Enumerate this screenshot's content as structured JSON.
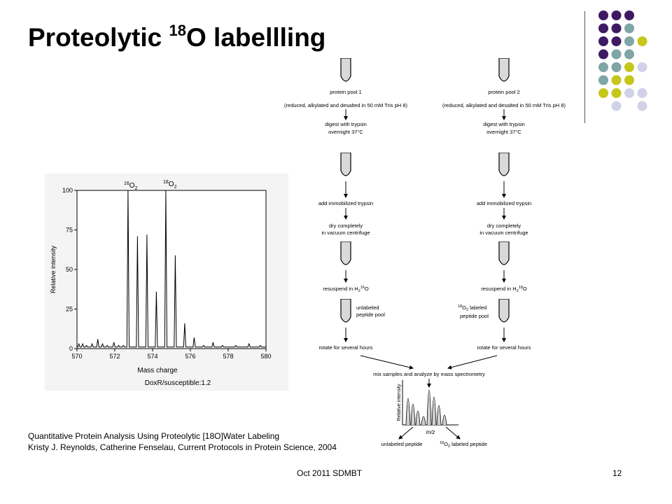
{
  "slide": {
    "title_prefix": "Proteolytic ",
    "title_sup": "18",
    "title_suffix": "O labellling",
    "footer": "Oct 2011 SDMBT",
    "slide_number": "12",
    "citation_line1": "Quantitative Protein Analysis Using Proteolytic [18O]Water Labeling",
    "citation_line2": "Kristy J. Reynolds, Catherine Fenselau, Current Protocols in Protein Science, 2004"
  },
  "theme": {
    "colors": {
      "purple": "#3e1a63",
      "teal": "#7fa5a6",
      "yellow": "#c6c61b",
      "lavender": "#d1d1e8"
    }
  },
  "chart_data": {
    "type": "line",
    "title": "",
    "xlabel": "Mass charge",
    "ylabel": "Relative intensity",
    "xlim": [
      570,
      580
    ],
    "ylim": [
      0,
      100
    ],
    "x_ticks": [
      "570",
      "572",
      "574",
      "576",
      "578",
      "580"
    ],
    "y_ticks": [
      "0",
      "25",
      "50",
      "75",
      "100"
    ],
    "annotations": [
      "16O2",
      "18O2"
    ],
    "caption": "DoxR/susceptible:1.2",
    "peaks": [
      {
        "x": 570.1,
        "y": 3
      },
      {
        "x": 570.3,
        "y": 3
      },
      {
        "x": 570.5,
        "y": 2
      },
      {
        "x": 570.8,
        "y": 3
      },
      {
        "x": 571.1,
        "y": 6
      },
      {
        "x": 571.35,
        "y": 3
      },
      {
        "x": 571.6,
        "y": 2
      },
      {
        "x": 571.95,
        "y": 4
      },
      {
        "x": 572.2,
        "y": 2
      },
      {
        "x": 572.45,
        "y": 2
      },
      {
        "x": 572.7,
        "y": 100
      },
      {
        "x": 573.2,
        "y": 71
      },
      {
        "x": 573.7,
        "y": 72
      },
      {
        "x": 574.2,
        "y": 36
      },
      {
        "x": 574.7,
        "y": 100
      },
      {
        "x": 575.2,
        "y": 59
      },
      {
        "x": 575.7,
        "y": 16
      },
      {
        "x": 576.2,
        "y": 7
      },
      {
        "x": 576.7,
        "y": 2
      },
      {
        "x": 577.2,
        "y": 4
      },
      {
        "x": 577.7,
        "y": 2
      },
      {
        "x": 578.4,
        "y": 2
      },
      {
        "x": 579.1,
        "y": 3
      },
      {
        "x": 579.7,
        "y": 2
      }
    ]
  },
  "flow": {
    "left": {
      "pool_label": "protein pool 1",
      "pool_desc": "(reduced, alkylated and desalted in 50 mM Tris pH 8)",
      "step_digest": "digest with trypsin",
      "step_overnight": "overnight 37°C",
      "step_immob": "add immobilized trypsin",
      "step_dry1": "dry completely",
      "step_dry2": "in vacuum centrifuge",
      "step_resuspend_pre": "resuspend in H",
      "step_resuspend_sub": "2",
      "step_resuspend_sup": "16",
      "step_resuspend_post": "O",
      "pool_tag1": "unlabeled",
      "pool_tag2": "peptide pool",
      "step_rotate": "rotate for several hours"
    },
    "right": {
      "pool_label": "protein pool 2",
      "pool_desc": "(reduced, alkylated and desalted in 50 mM Tris pH 8)",
      "step_digest": "digest with trypsin",
      "step_overnight": "overnight 37°C",
      "step_immob": "add immobilized trypsin",
      "step_dry1": "dry completely",
      "step_dry2": "in vacuum centrifuge",
      "step_resuspend_pre": "resuspend in H",
      "step_resuspend_sub": "2",
      "step_resuspend_sup": "18",
      "step_resuspend_post": "O",
      "pool_tag1_sup": "18",
      "pool_tag1_main": "O",
      "pool_tag1_sub": "2",
      "pool_tag1_rest": " labeled",
      "pool_tag2": "peptide pool",
      "step_rotate": "rotate for several hours"
    },
    "mix_label": "mix samples and analyze by mass spectrometry",
    "inset_ylabel": "Relative intensity",
    "inset_xlabel": "m/z",
    "out_unlabeled": "unlabeled peptide",
    "out_labeled_sup": "18",
    "out_labeled_main": "O",
    "out_labeled_sub": "2",
    "out_labeled_rest": " labeled peptide"
  }
}
